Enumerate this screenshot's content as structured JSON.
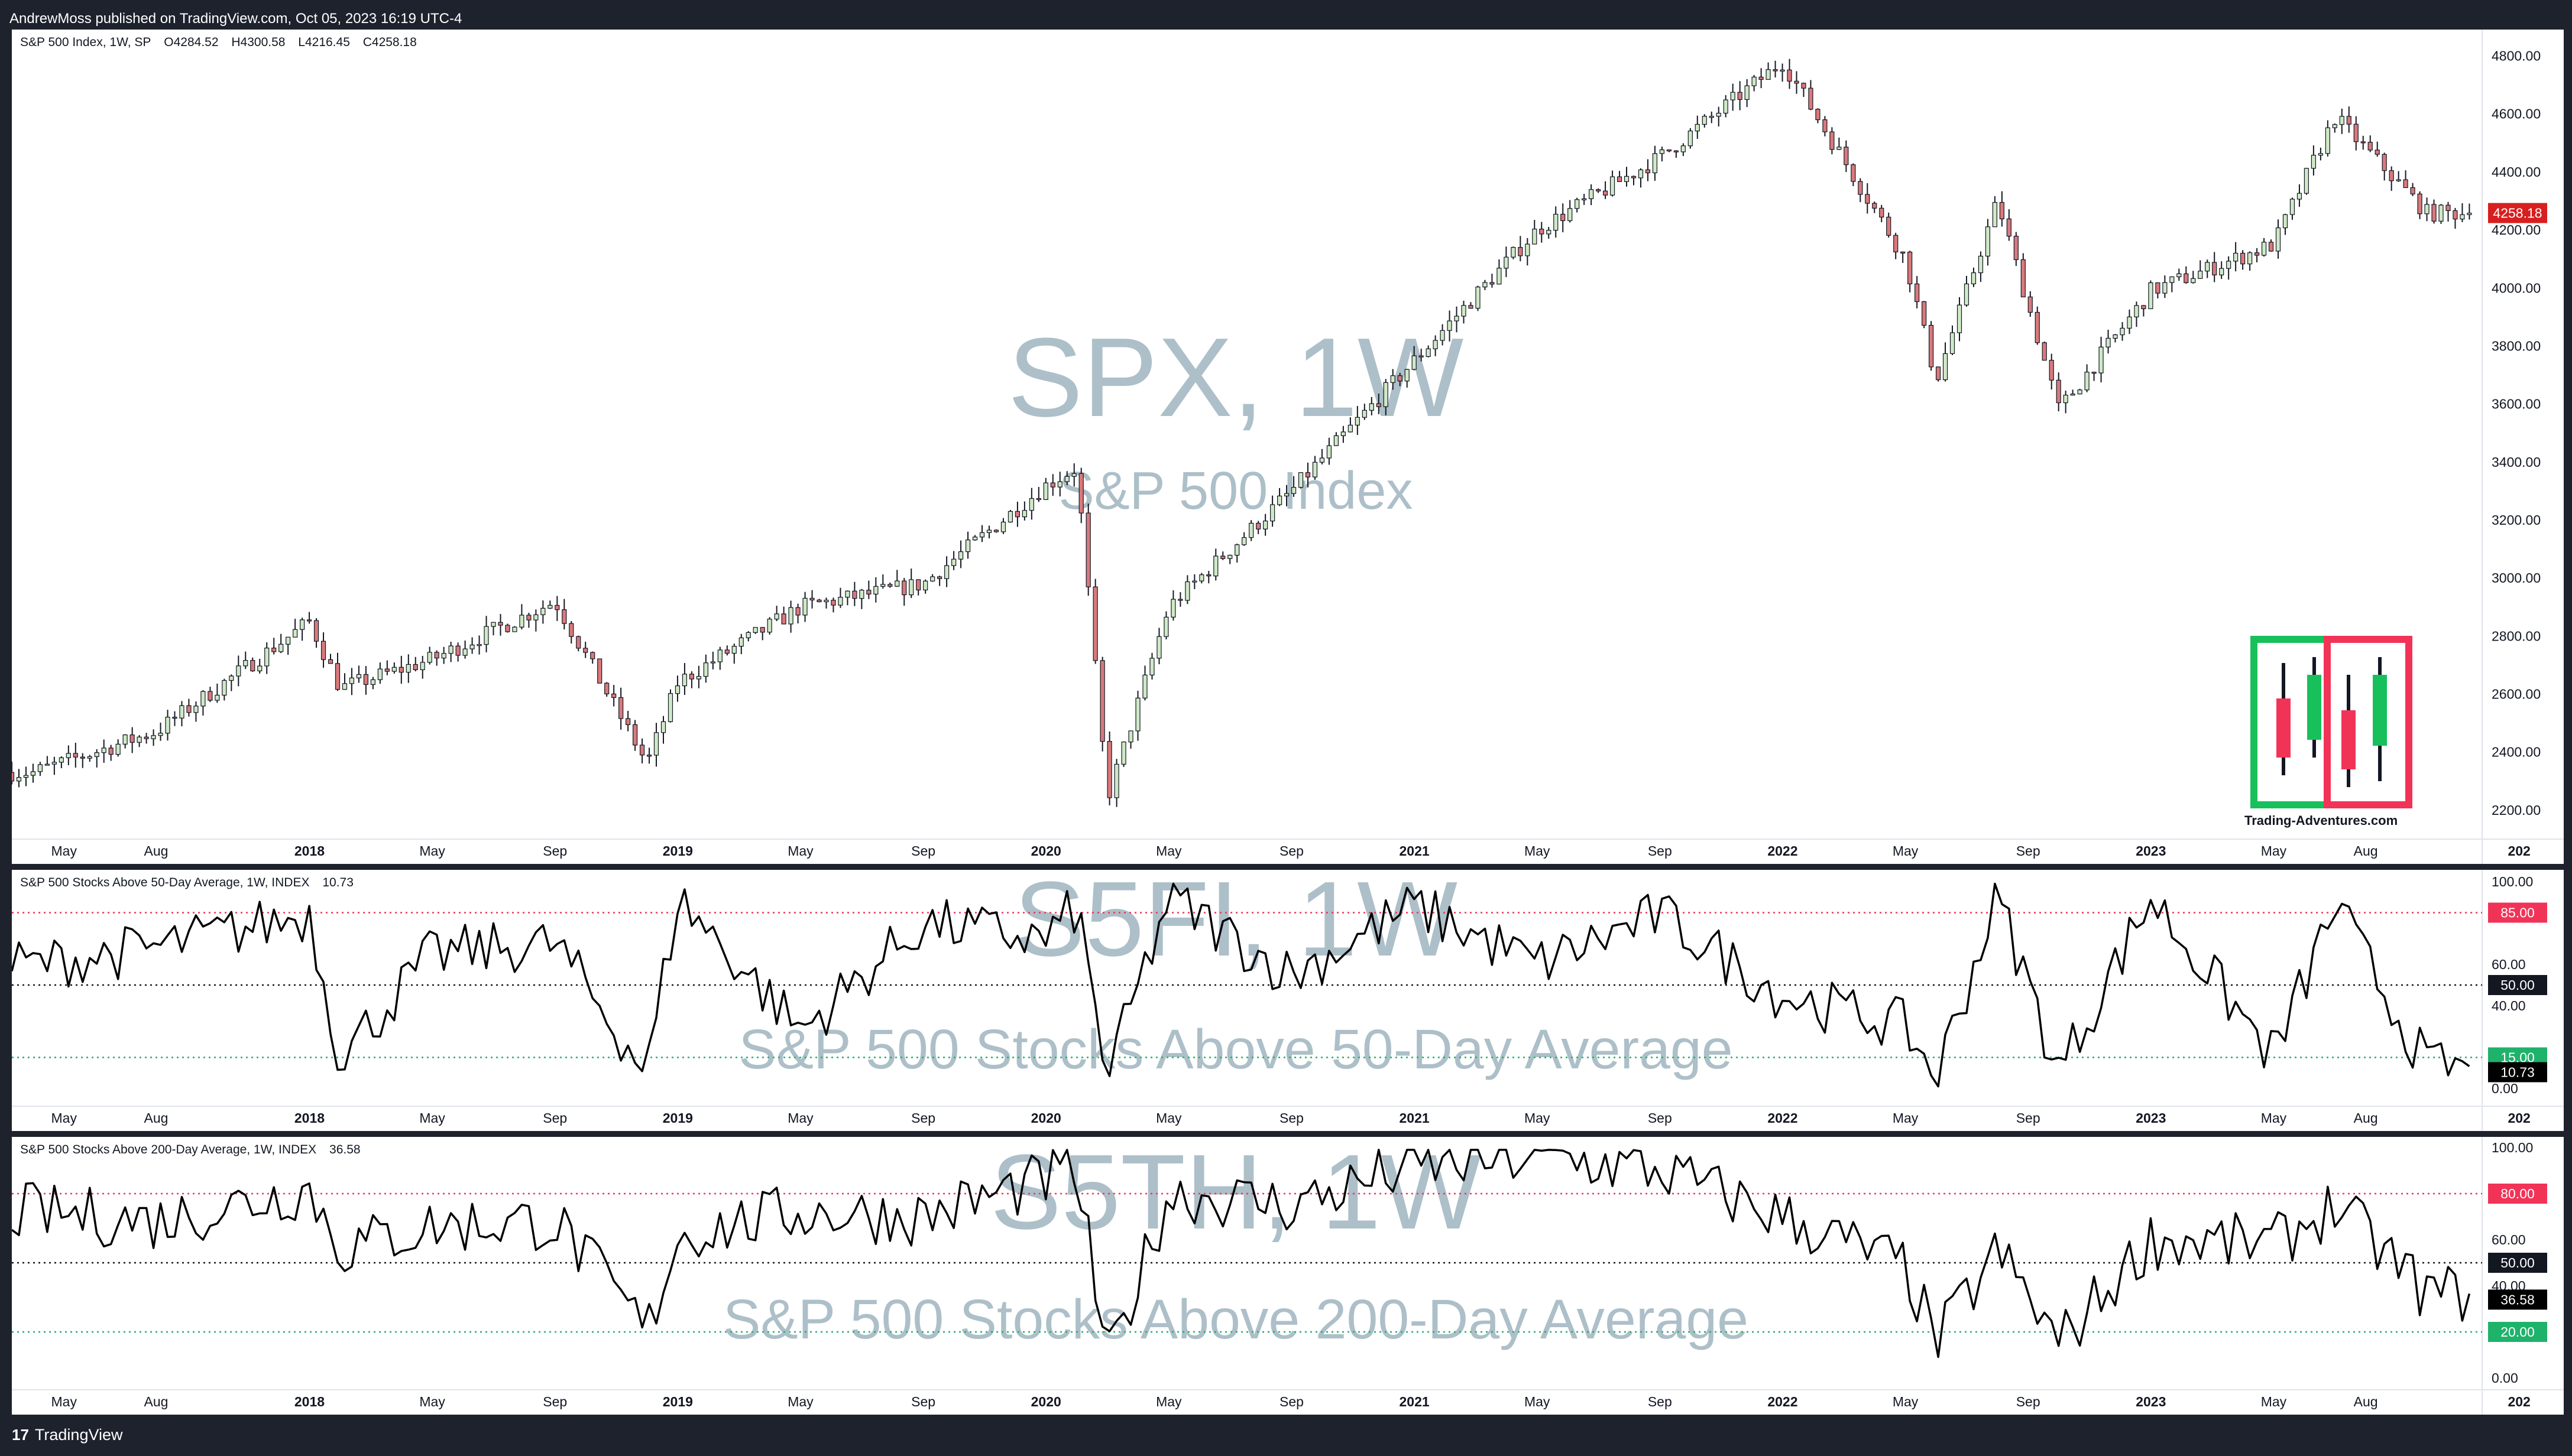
{
  "header": {
    "published": "AndrewMoss published on TradingView.com, Oct 05, 2023 16:19 UTC-4"
  },
  "footer": {
    "brand": "TradingView",
    "brand_mark": "17"
  },
  "logo": {
    "caption": "Trading-Adventures.com",
    "colors": {
      "green": "#18c05c",
      "red": "#f23358"
    }
  },
  "colors": {
    "up": "#26a69a",
    "up_fill": "#cfe9c6",
    "down": "#ef5350",
    "down_fill": "#d9797c",
    "wick": "#131722",
    "red_line": "#f23358",
    "green_line": "#1fb26b",
    "price_label": "#d81e1e",
    "axis_text": "#131722"
  },
  "time_axis": [
    "May",
    "Aug",
    "2018",
    "May",
    "Sep",
    "2019",
    "May",
    "Sep",
    "2020",
    "May",
    "Sep",
    "2021",
    "May",
    "Sep",
    "2022",
    "May",
    "Sep",
    "2023",
    "May",
    "Aug",
    "202"
  ],
  "panes": [
    {
      "id": "spx",
      "title": {
        "name": "S&P 500 Index, 1W, SP",
        "open": "O4284.52",
        "high": "H4300.58",
        "low": "L4216.45",
        "close": "C4258.18"
      },
      "watermark": {
        "main": "SPX, 1W",
        "sub": "S&P 500 Index"
      },
      "axis_labels": [
        "4800.00",
        "4600.00",
        "4400.00",
        "4200.00",
        "4000.00",
        "3800.00",
        "3600.00",
        "3400.00",
        "3200.00",
        "3000.00",
        "2800.00",
        "2600.00",
        "2400.00",
        "2200.00"
      ],
      "last_value": "4258.18"
    },
    {
      "id": "s5fi",
      "title": {
        "name": "S&P 500 Stocks Above 50-Day Average, 1W, INDEX",
        "value": "10.73"
      },
      "watermark": {
        "main": "S5FI, 1W",
        "sub": "S&P 500 Stocks Above 50-Day Average"
      },
      "axis_labels": [
        "100.00",
        "60.00",
        "40.00",
        "0.00"
      ],
      "levels": [
        {
          "value": "85.00",
          "color": "red"
        },
        {
          "value": "50.00",
          "color": "black"
        },
        {
          "value": "15.00",
          "color": "green"
        }
      ],
      "last_value": "10.73"
    },
    {
      "id": "s5th",
      "title": {
        "name": "S&P 500 Stocks Above 200-Day Average, 1W, INDEX",
        "value": "36.58"
      },
      "watermark": {
        "main": "S5TH, 1W",
        "sub": "S&P 500 Stocks Above 200-Day Average"
      },
      "axis_labels": [
        "100.00",
        "60.00",
        "40.00",
        "0.00"
      ],
      "levels": [
        {
          "value": "80.00",
          "color": "red"
        },
        {
          "value": "50.00",
          "color": "black"
        },
        {
          "value": "20.00",
          "color": "green"
        }
      ],
      "last_value": "36.58"
    }
  ],
  "chart_data": [
    {
      "type": "line",
      "title": "S&P 500 Index, 1W, SP",
      "style": "candlestick",
      "x": [
        "2017-04",
        "2017-08",
        "2018-01",
        "2018-02",
        "2018-05",
        "2018-09",
        "2018-12",
        "2019-01",
        "2019-05",
        "2019-09",
        "2020-01",
        "2020-02",
        "2020-03",
        "2020-05",
        "2020-09",
        "2021-01",
        "2021-05",
        "2021-09",
        "2022-01",
        "2022-05",
        "2022-06",
        "2022-08",
        "2022-10",
        "2023-01",
        "2023-05",
        "2023-07",
        "2023-10"
      ],
      "series": [
        {
          "values": [
            2330,
            2470,
            2850,
            2620,
            2720,
            2920,
            2360,
            2640,
            2900,
            2980,
            3320,
            3380,
            2240,
            2900,
            3300,
            3750,
            4200,
            4450,
            4780,
            4100,
            3680,
            4300,
            3580,
            3990,
            4150,
            4590,
            4258
          ]
        }
      ],
      "ylim": [
        2100,
        4850
      ]
    },
    {
      "type": "line",
      "title": "S&P 500 Stocks Above 50-Day Average, 1W, INDEX",
      "x": [
        "2017-04",
        "2017-08",
        "2018-01",
        "2018-02",
        "2018-05",
        "2018-09",
        "2018-12",
        "2019-01",
        "2019-05",
        "2019-09",
        "2020-01",
        "2020-02",
        "2020-03",
        "2020-05",
        "2020-09",
        "2021-01",
        "2021-05",
        "2021-09",
        "2022-01",
        "2022-05",
        "2022-06",
        "2022-08",
        "2022-10",
        "2023-01",
        "2023-05",
        "2023-07",
        "2023-10"
      ],
      "series": [
        {
          "values": [
            60,
            68,
            84,
            15,
            65,
            70,
            8,
            92,
            28,
            80,
            72,
            88,
            5,
            92,
            55,
            88,
            60,
            84,
            45,
            30,
            5,
            93,
            8,
            92,
            15,
            88,
            10.73
          ]
        }
      ],
      "ylim": [
        0,
        100
      ]
    },
    {
      "type": "line",
      "title": "S&P 500 Stocks Above 200-Day Average, 1W, INDEX",
      "x": [
        "2017-04",
        "2017-08",
        "2018-01",
        "2018-02",
        "2018-05",
        "2018-09",
        "2018-12",
        "2019-01",
        "2019-05",
        "2019-09",
        "2020-01",
        "2020-02",
        "2020-03",
        "2020-05",
        "2020-09",
        "2021-01",
        "2021-05",
        "2021-09",
        "2022-01",
        "2022-05",
        "2022-06",
        "2022-08",
        "2022-10",
        "2023-01",
        "2023-05",
        "2023-07",
        "2023-10"
      ],
      "series": [
        {
          "values": [
            72,
            68,
            82,
            56,
            66,
            68,
            20,
            62,
            72,
            70,
            86,
            90,
            5,
            80,
            75,
            92,
            96,
            90,
            70,
            48,
            15,
            55,
            15,
            60,
            58,
            75,
            36.58
          ]
        }
      ],
      "ylim": [
        0,
        100
      ]
    }
  ]
}
